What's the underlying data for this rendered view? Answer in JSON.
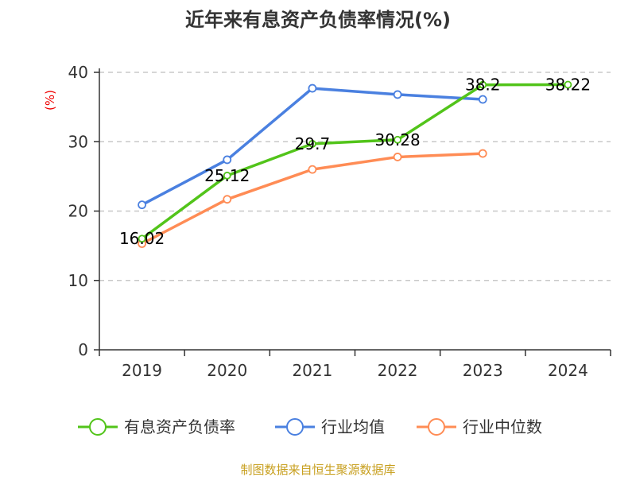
{
  "chart_data": {
    "type": "line",
    "title": "近年来有息资产负债率情况(%)",
    "ylabel": "(%)",
    "xlabel": "",
    "categories": [
      "2019",
      "2020",
      "2021",
      "2022",
      "2023",
      "2024"
    ],
    "ylim": [
      0,
      40
    ],
    "yticks": [
      "0",
      "10",
      "20",
      "30",
      "40"
    ],
    "grid": true,
    "legend_position": "bottom",
    "series": [
      {
        "name": "有息资产负债率",
        "color": "#52c41a",
        "values": [
          16.02,
          25.12,
          29.7,
          30.28,
          38.2,
          38.22
        ],
        "labels": [
          "16.02",
          "25.12",
          "29.7",
          "30.28",
          "38.2",
          "38.22"
        ]
      },
      {
        "name": "行业均值",
        "color": "#4a80e0",
        "values": [
          20.9,
          27.4,
          37.7,
          36.8,
          36.1,
          null
        ]
      },
      {
        "name": "行业中位数",
        "color": "#ff8c55",
        "values": [
          15.3,
          21.7,
          26.0,
          27.8,
          28.3,
          null
        ]
      }
    ],
    "source": "制图数据来自恒生聚源数据库"
  }
}
